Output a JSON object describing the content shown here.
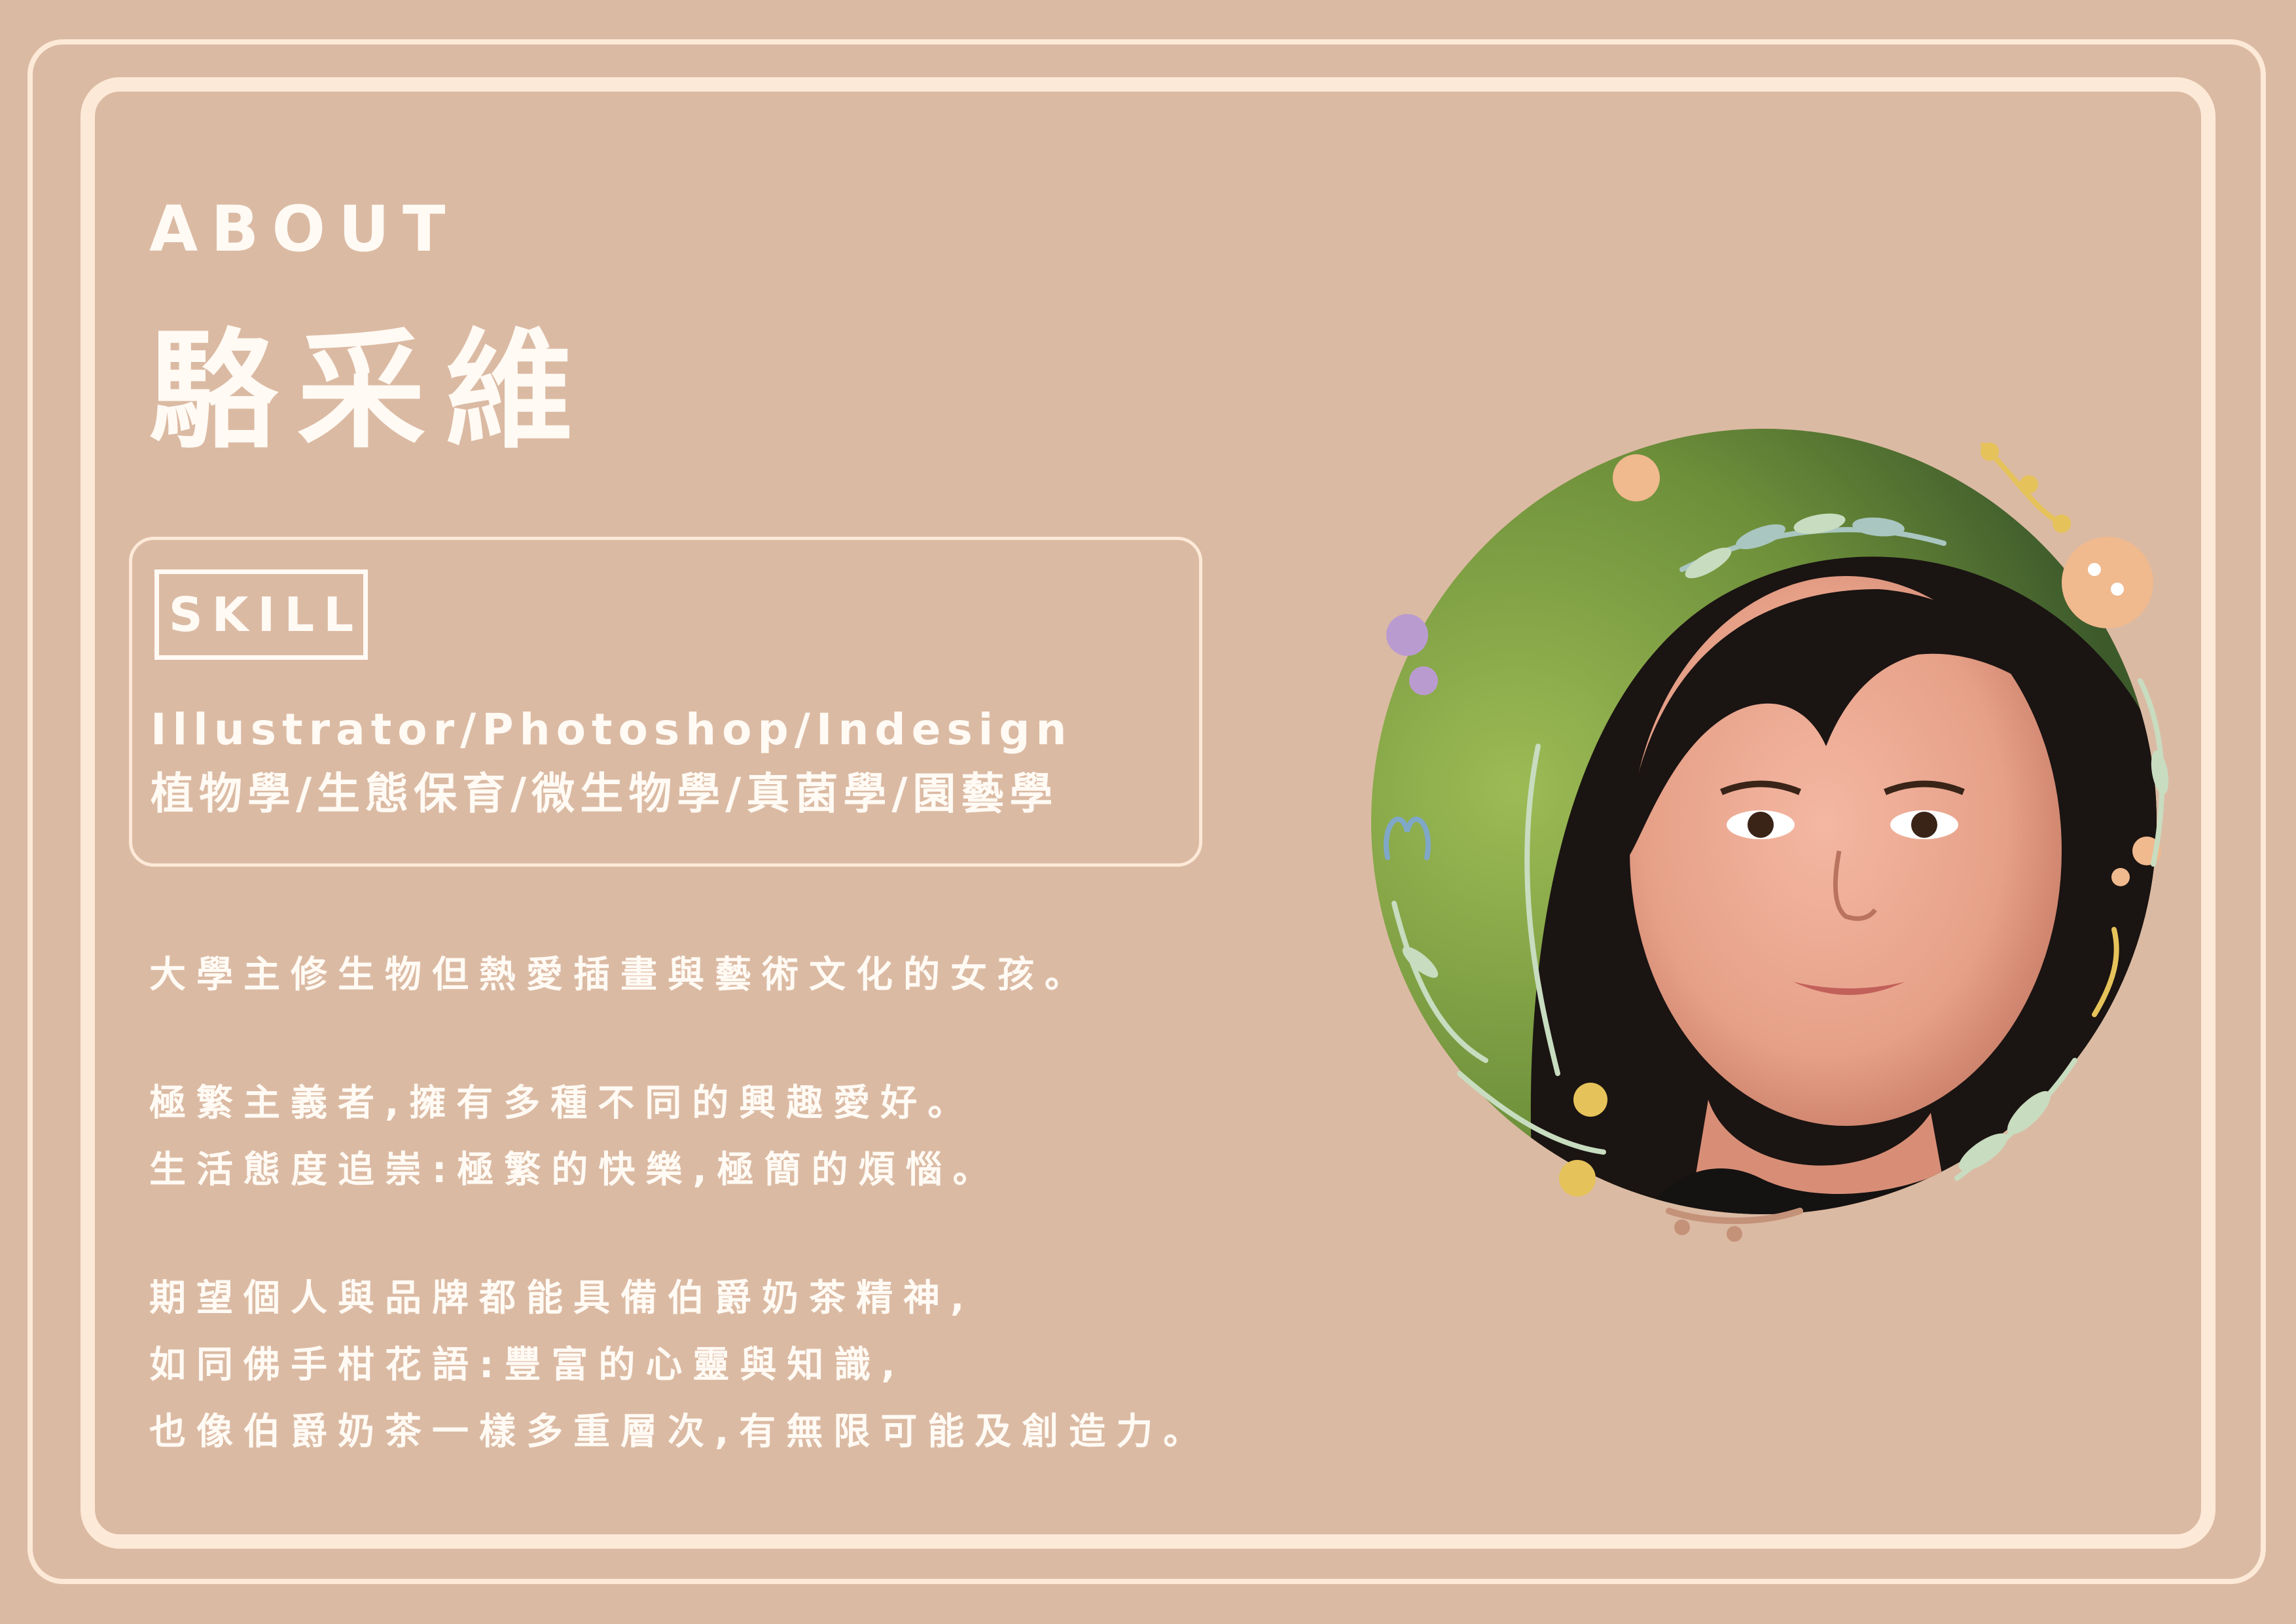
{
  "header": {
    "section_label": "ABOUT",
    "name": "駱采維"
  },
  "skill": {
    "tag": "SKILL",
    "software": "Illustrator/Photoshop/Indesign",
    "fields": "植物學/生態保育/微生物學/真菌學/園藝學"
  },
  "bio": {
    "lines": [
      "大學主修生物但熱愛插畫與藝術文化的女孩。",
      "極繁主義者,擁有多種不同的興趣愛好。",
      "生活態度追崇:極繁的快樂,極簡的煩惱。",
      "期望個人與品牌都能具備伯爵奶茶精神,",
      "如同佛手柑花語:豐富的心靈與知識,",
      "也像伯爵奶茶一樣多重層次,有無限可能及創造力。"
    ]
  },
  "colors": {
    "background": "#dbbaa3",
    "frame": "#fde9d7",
    "text": "#fffaf4",
    "wreath_green": "#c8dcc0",
    "wreath_teal": "#a9c6c0",
    "wreath_yellow": "#e6c35a",
    "wreath_peach": "#f0b98e",
    "wreath_purple": "#b99bd0",
    "wreath_blue": "#7fa8c8",
    "wreath_brown": "#c49278"
  },
  "icons": {
    "portrait": "portrait-photo",
    "wreath": "floral-wreath-icon"
  }
}
